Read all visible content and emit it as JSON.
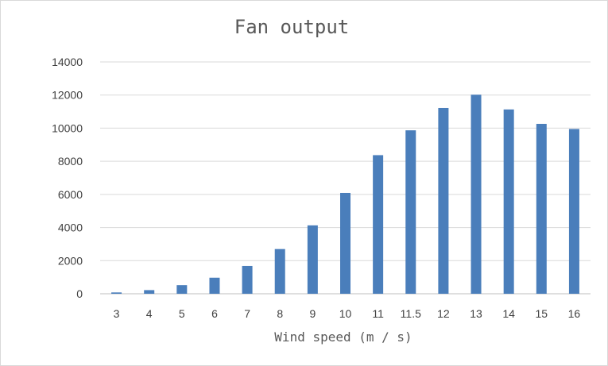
{
  "chart_data": {
    "type": "bar",
    "title": "Fan output",
    "xlabel": "Wind speed (m / s)",
    "ylabel": "",
    "categories": [
      "3",
      "4",
      "5",
      "6",
      "7",
      "8",
      "9",
      "10",
      "11",
      "11.5",
      "12",
      "13",
      "14",
      "15",
      "16"
    ],
    "values": [
      80,
      220,
      520,
      970,
      1680,
      2700,
      4130,
      6090,
      8370,
      9870,
      11220,
      12020,
      11130,
      10260,
      9950
    ],
    "ylim": [
      0,
      14000
    ],
    "yticks": [
      0,
      2000,
      4000,
      6000,
      8000,
      10000,
      12000,
      14000
    ],
    "grid": true,
    "legend": "none",
    "colors": {
      "bar": "#4a7ebb",
      "grid": "#d9d9d9",
      "text": "#404040"
    }
  }
}
